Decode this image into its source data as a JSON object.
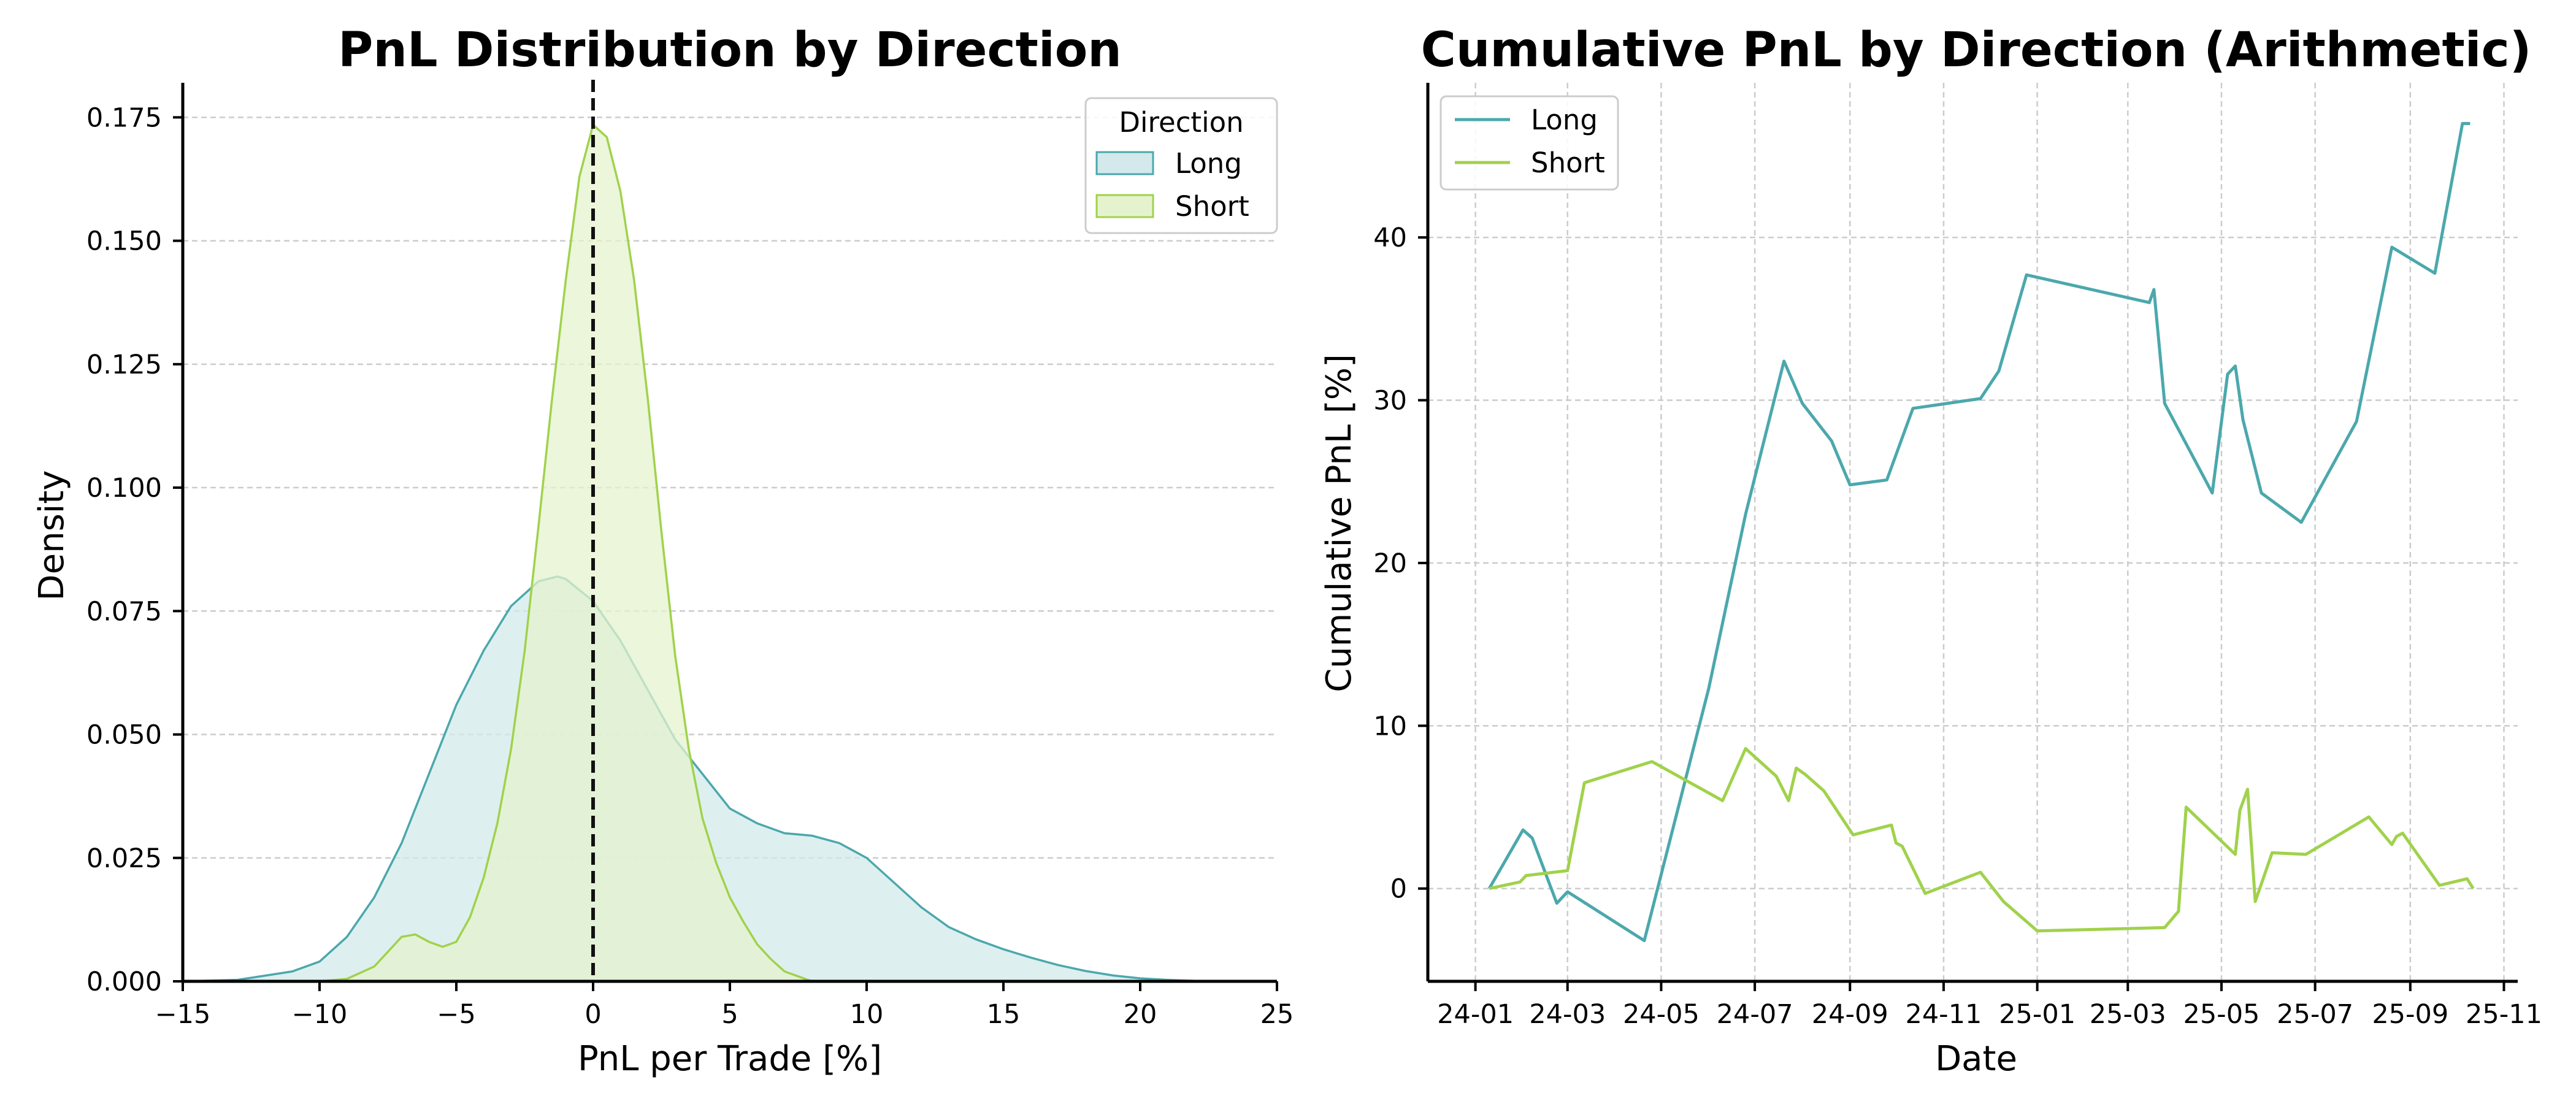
{
  "chart_data": [
    {
      "type": "area",
      "title": "PnL Distribution by Direction",
      "xlabel": "PnL per Trade [%]",
      "ylabel": "Density",
      "xlim": [
        -15,
        25
      ],
      "ylim": [
        0,
        0.182
      ],
      "xticks": [
        "−15",
        "−10",
        "−5",
        "0",
        "5",
        "10",
        "15",
        "20",
        "25"
      ],
      "yticks": [
        "0.000",
        "0.025",
        "0.050",
        "0.075",
        "0.100",
        "0.125",
        "0.150",
        "0.175"
      ],
      "grid": "horizontal dashed",
      "reference_line": {
        "x": 0,
        "style": "dashed",
        "color": "#111111"
      },
      "legend": {
        "title": "Direction",
        "placement": "top-right"
      },
      "series": [
        {
          "name": "Long",
          "color": "#4ba8ac",
          "fill": "#d3e9eb",
          "x": [
            -15,
            -13,
            -11,
            -10,
            -9,
            -8,
            -7,
            -6,
            -5,
            -4,
            -3,
            -2,
            -1.3,
            -1,
            0,
            1,
            2,
            3,
            4,
            5,
            6,
            7,
            8,
            9,
            10,
            11,
            12,
            13,
            14,
            15,
            16,
            17,
            18,
            19,
            20,
            21,
            22,
            23,
            24
          ],
          "y": [
            0.0,
            0.0003,
            0.002,
            0.004,
            0.009,
            0.017,
            0.028,
            0.042,
            0.056,
            0.067,
            0.076,
            0.081,
            0.082,
            0.0815,
            0.077,
            0.069,
            0.059,
            0.049,
            0.042,
            0.035,
            0.032,
            0.03,
            0.0295,
            0.028,
            0.025,
            0.02,
            0.015,
            0.011,
            0.0085,
            0.0065,
            0.0048,
            0.0033,
            0.0021,
            0.0012,
            0.0006,
            0.0003,
            0.0001,
            0.0,
            0.0
          ]
        },
        {
          "name": "Short",
          "color": "#a0d24b",
          "fill": "#e4f3cd",
          "x": [
            -10,
            -9,
            -8,
            -7,
            -6.5,
            -6,
            -5.5,
            -5,
            -4.5,
            -4,
            -3.5,
            -3,
            -2.5,
            -2,
            -1.5,
            -1,
            -0.5,
            0,
            0.5,
            1,
            1.5,
            2,
            2.5,
            3,
            3.5,
            4,
            4.5,
            5,
            5.5,
            6,
            6.5,
            7,
            7.5,
            8
          ],
          "y": [
            0.0,
            0.0005,
            0.003,
            0.009,
            0.0095,
            0.008,
            0.007,
            0.008,
            0.013,
            0.021,
            0.032,
            0.047,
            0.067,
            0.092,
            0.118,
            0.142,
            0.163,
            0.1735,
            0.171,
            0.16,
            0.142,
            0.118,
            0.091,
            0.066,
            0.047,
            0.033,
            0.024,
            0.017,
            0.012,
            0.0075,
            0.0045,
            0.002,
            0.001,
            0.0
          ]
        }
      ]
    },
    {
      "type": "line",
      "title": "Cumulative PnL by Direction (Arithmetic)",
      "xlabel": "Date",
      "ylabel": "Cumulative PnL [%]",
      "xlim": [
        "2023-12-01",
        "2025-11-10"
      ],
      "ylim": [
        -5.7,
        49.5
      ],
      "xtick_values": [
        "2024-01-01",
        "2024-03-01",
        "2024-05-01",
        "2024-07-01",
        "2024-09-01",
        "2024-11-01",
        "2025-01-01",
        "2025-03-01",
        "2025-05-01",
        "2025-07-01",
        "2025-09-01",
        "2025-11-01"
      ],
      "xticks": [
        "24-01",
        "24-03",
        "24-05",
        "24-07",
        "24-09",
        "24-11",
        "25-01",
        "25-03",
        "25-05",
        "25-07",
        "25-09",
        "25-11"
      ],
      "yticks": [
        0,
        10,
        20,
        30,
        40
      ],
      "grid": "both dashed",
      "legend": {
        "placement": "top-left"
      },
      "series": [
        {
          "name": "Long",
          "color": "#4ba8ac",
          "points": [
            [
              "2024-01-10",
              0.0
            ],
            [
              "2024-02-01",
              3.6
            ],
            [
              "2024-02-07",
              3.1
            ],
            [
              "2024-02-23",
              -0.9
            ],
            [
              "2024-03-01",
              -0.2
            ],
            [
              "2024-04-20",
              -3.2
            ],
            [
              "2024-06-01",
              12.3
            ],
            [
              "2024-06-25",
              23.0
            ],
            [
              "2024-07-20",
              32.4
            ],
            [
              "2024-08-01",
              29.8
            ],
            [
              "2024-08-20",
              27.5
            ],
            [
              "2024-09-01",
              24.8
            ],
            [
              "2024-09-25",
              25.1
            ],
            [
              "2024-10-12",
              29.5
            ],
            [
              "2024-11-25",
              30.1
            ],
            [
              "2024-12-07",
              31.8
            ],
            [
              "2024-12-25",
              37.7
            ],
            [
              "2025-03-15",
              36.0
            ],
            [
              "2025-03-18",
              36.8
            ],
            [
              "2025-03-25",
              29.8
            ],
            [
              "2025-04-25",
              24.3
            ],
            [
              "2025-05-05",
              31.6
            ],
            [
              "2025-05-10",
              32.1
            ],
            [
              "2025-05-15",
              28.8
            ],
            [
              "2025-05-27",
              24.3
            ],
            [
              "2025-06-22",
              22.5
            ],
            [
              "2025-07-28",
              28.7
            ],
            [
              "2025-08-20",
              39.4
            ],
            [
              "2025-09-17",
              37.8
            ],
            [
              "2025-10-05",
              47.0
            ],
            [
              "2025-10-10",
              47.0
            ]
          ]
        },
        {
          "name": "Short",
          "color": "#a0d24b",
          "points": [
            [
              "2024-01-10",
              0.0
            ],
            [
              "2024-01-30",
              0.4
            ],
            [
              "2024-02-03",
              0.8
            ],
            [
              "2024-03-01",
              1.1
            ],
            [
              "2024-03-12",
              6.5
            ],
            [
              "2024-04-25",
              7.8
            ],
            [
              "2024-06-10",
              5.4
            ],
            [
              "2024-06-25",
              8.6
            ],
            [
              "2024-07-15",
              6.9
            ],
            [
              "2024-07-23",
              5.4
            ],
            [
              "2024-07-28",
              7.4
            ],
            [
              "2024-08-03",
              7.0
            ],
            [
              "2024-08-15",
              6.0
            ],
            [
              "2024-09-03",
              3.3
            ],
            [
              "2024-09-28",
              3.9
            ],
            [
              "2024-10-01",
              2.8
            ],
            [
              "2024-10-05",
              2.6
            ],
            [
              "2024-10-20",
              -0.3
            ],
            [
              "2024-11-25",
              1.0
            ],
            [
              "2024-12-10",
              -0.8
            ],
            [
              "2025-01-01",
              -2.6
            ],
            [
              "2025-03-25",
              -2.4
            ],
            [
              "2025-04-03",
              -1.4
            ],
            [
              "2025-04-05",
              1.2
            ],
            [
              "2025-04-08",
              5.0
            ],
            [
              "2025-05-10",
              2.1
            ],
            [
              "2025-05-13",
              4.8
            ],
            [
              "2025-05-18",
              6.1
            ],
            [
              "2025-05-23",
              -0.8
            ],
            [
              "2025-06-03",
              2.2
            ],
            [
              "2025-06-25",
              2.1
            ],
            [
              "2025-08-05",
              4.4
            ],
            [
              "2025-08-20",
              2.7
            ],
            [
              "2025-08-23",
              3.2
            ],
            [
              "2025-08-27",
              3.4
            ],
            [
              "2025-09-20",
              0.2
            ],
            [
              "2025-10-08",
              0.6
            ],
            [
              "2025-10-12",
              0.0
            ]
          ]
        }
      ]
    }
  ]
}
